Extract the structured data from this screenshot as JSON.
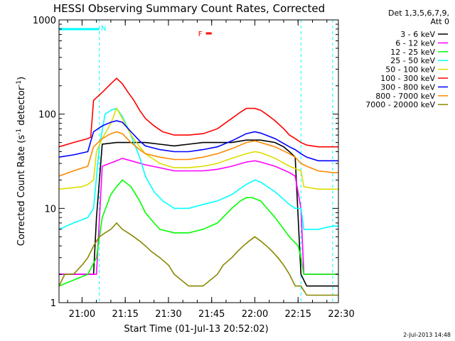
{
  "chart_data": {
    "type": "line",
    "title": "HESSI Observing Summary Count Rates, Corrected",
    "xlabel": "Start Time (01-Jul-13 20:52:02)",
    "ylabel_main": "Corrected Count Rate (s",
    "ylabel_sup1": "-1",
    "ylabel_mid": " detector",
    "ylabel_sup2": "-1",
    "ylabel_end": ")",
    "x_unit": "minutes after 20:52:02",
    "xlim": [
      0,
      97
    ],
    "ylim": [
      1,
      1000
    ],
    "yscale": "log",
    "x_ticks": [
      {
        "t": 8,
        "label": "21:00"
      },
      {
        "t": 23,
        "label": "21:15"
      },
      {
        "t": 38,
        "label": "21:30"
      },
      {
        "t": 53,
        "label": "21:45"
      },
      {
        "t": 68,
        "label": "22:00"
      },
      {
        "t": 83,
        "label": "22:15"
      },
      {
        "t": 98,
        "label": "22:30"
      }
    ],
    "y_ticks": [
      {
        "v": 1,
        "label": "1"
      },
      {
        "v": 10,
        "label": "10"
      },
      {
        "v": 100,
        "label": "100"
      },
      {
        "v": 1000,
        "label": "1000"
      }
    ],
    "legend": {
      "header1": "Det 1,3,5,6,7,9,",
      "header2": "Att 0",
      "position": "right"
    },
    "series": [
      {
        "name": "3 - 6 keV",
        "color": "#000000",
        "x": [
          0,
          12,
          13,
          15,
          20,
          25,
          30,
          35,
          40,
          45,
          50,
          55,
          60,
          65,
          70,
          75,
          78,
          80,
          82,
          84,
          86,
          90,
          95,
          97
        ],
        "y": [
          2,
          2,
          8,
          48,
          50,
          50,
          50,
          48,
          46,
          48,
          50,
          50,
          50,
          53,
          53,
          50,
          45,
          40,
          35,
          2,
          1.5,
          1.5,
          1.5,
          1.5
        ]
      },
      {
        "name": "6 - 12 keV",
        "color": "#ff00ff",
        "x": [
          0,
          10,
          13,
          15,
          20,
          22,
          25,
          30,
          35,
          40,
          45,
          50,
          55,
          60,
          65,
          68,
          70,
          75,
          80,
          82,
          84,
          85,
          90,
          95,
          97
        ],
        "y": [
          2,
          2,
          2,
          28,
          32,
          34,
          32,
          29,
          27,
          25,
          25,
          25,
          26,
          28,
          31,
          32,
          31,
          28,
          24,
          22,
          10,
          2,
          2,
          2,
          2
        ]
      },
      {
        "name": "12 - 25 keV",
        "color": "#00ff00",
        "x": [
          0,
          10,
          13,
          15,
          18,
          20,
          22,
          25,
          28,
          30,
          33,
          35,
          40,
          45,
          50,
          55,
          60,
          63,
          65,
          67,
          70,
          75,
          80,
          83,
          84,
          85,
          90,
          95,
          97
        ],
        "y": [
          1.5,
          2,
          3,
          8,
          14,
          17,
          20,
          17,
          12,
          9,
          7,
          6,
          5.5,
          5.5,
          6,
          7,
          10,
          12,
          13,
          13,
          12,
          8,
          5,
          4,
          3,
          2,
          2,
          2,
          2
        ]
      },
      {
        "name": "25 - 50 keV",
        "color": "#00ffff",
        "x": [
          0,
          5,
          10,
          12,
          14,
          16,
          18,
          20,
          22,
          24,
          26,
          28,
          30,
          33,
          36,
          40,
          45,
          50,
          55,
          60,
          65,
          68,
          70,
          75,
          80,
          82,
          84,
          85,
          90,
          95,
          97
        ],
        "y": [
          6,
          7,
          8,
          10,
          45,
          100,
          110,
          115,
          95,
          70,
          50,
          35,
          22,
          15,
          12,
          10,
          10,
          11,
          12,
          14,
          18,
          20,
          19,
          15,
          11,
          10,
          10,
          6,
          6,
          6.5,
          6.5
        ]
      },
      {
        "name": "50 - 100 keV",
        "color": "#dddd00",
        "x": [
          0,
          8,
          10,
          12,
          13,
          15,
          18,
          20,
          22,
          25,
          28,
          30,
          35,
          40,
          45,
          50,
          55,
          60,
          65,
          68,
          70,
          75,
          80,
          84,
          85,
          90,
          95,
          97
        ],
        "y": [
          16,
          17,
          18,
          20,
          40,
          55,
          80,
          115,
          90,
          60,
          45,
          38,
          30,
          27,
          27,
          28,
          30,
          34,
          38,
          40,
          39,
          34,
          28,
          25,
          17,
          16,
          16,
          16
        ]
      },
      {
        "name": "100 - 300 keV",
        "color": "#ff0000",
        "x": [
          0,
          5,
          10,
          11,
          12,
          15,
          18,
          20,
          22,
          24,
          26,
          28,
          30,
          33,
          36,
          40,
          45,
          50,
          55,
          60,
          63,
          65,
          68,
          70,
          72,
          75,
          78,
          80,
          82,
          84,
          86,
          90,
          95,
          97
        ],
        "y": [
          45,
          50,
          55,
          57,
          140,
          170,
          210,
          240,
          210,
          170,
          140,
          110,
          90,
          75,
          65,
          60,
          60,
          62,
          70,
          90,
          105,
          115,
          115,
          110,
          100,
          85,
          70,
          60,
          55,
          50,
          47,
          45,
          45,
          45
        ]
      },
      {
        "name": "300 - 800 keV",
        "color": "#0000ff",
        "x": [
          0,
          5,
          10,
          12,
          15,
          18,
          20,
          22,
          25,
          28,
          30,
          35,
          40,
          45,
          50,
          55,
          60,
          65,
          68,
          70,
          75,
          80,
          82,
          84,
          86,
          90,
          95,
          97
        ],
        "y": [
          35,
          37,
          40,
          65,
          75,
          82,
          85,
          82,
          65,
          52,
          46,
          42,
          40,
          40,
          42,
          45,
          52,
          62,
          65,
          63,
          55,
          45,
          42,
          38,
          35,
          32,
          32,
          32
        ]
      },
      {
        "name": "800 - 7000 keV",
        "color": "#ff8800",
        "x": [
          0,
          5,
          10,
          12,
          15,
          18,
          20,
          22,
          25,
          28,
          30,
          35,
          40,
          45,
          50,
          55,
          60,
          65,
          68,
          70,
          75,
          80,
          82,
          84,
          86,
          90,
          95,
          97
        ],
        "y": [
          22,
          25,
          28,
          45,
          55,
          62,
          65,
          62,
          50,
          42,
          38,
          35,
          33,
          33,
          35,
          38,
          43,
          50,
          52,
          50,
          45,
          38,
          35,
          30,
          28,
          25,
          24,
          24
        ]
      },
      {
        "name": "7000 - 20000 keV",
        "color": "#888800",
        "x": [
          0,
          2,
          5,
          8,
          10,
          12,
          14,
          16,
          18,
          20,
          22,
          24,
          26,
          28,
          30,
          32,
          35,
          38,
          40,
          45,
          50,
          55,
          57,
          60,
          62,
          64,
          66,
          68,
          70,
          72,
          74,
          76,
          78,
          80,
          82,
          84,
          86,
          90,
          95,
          97
        ],
        "y": [
          1.5,
          2,
          2,
          2.5,
          3,
          4,
          5,
          5.5,
          6,
          7,
          6,
          5.5,
          5,
          4.5,
          4,
          3.5,
          3,
          2.5,
          2,
          1.5,
          1.5,
          2,
          2.5,
          3,
          3.5,
          4,
          4.5,
          5,
          4.5,
          4,
          3.5,
          3,
          2.5,
          2,
          1.5,
          1.5,
          1.2,
          1.2,
          1.2,
          1.2
        ]
      }
    ],
    "annotations": [
      {
        "label": "N",
        "t_start": 0,
        "t_end": 14,
        "color": "#00ffff"
      },
      {
        "label": "F",
        "t_start": 51,
        "t_end": 53,
        "color": "#ff0000"
      }
    ],
    "vertical_markers": [
      14,
      84,
      95
    ],
    "date_stamp": "2-Jul-2013 14:48"
  }
}
